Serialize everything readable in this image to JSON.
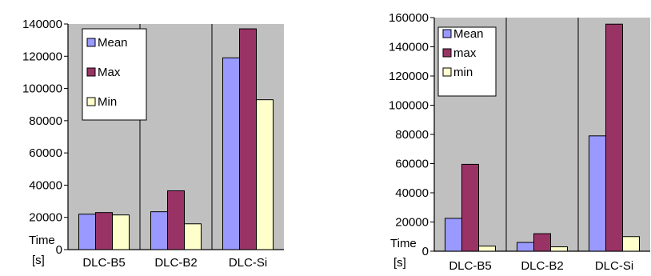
{
  "chart_data": [
    {
      "type": "bar",
      "categories": [
        "DLC-B5",
        "DLC-B2",
        "DLC-Si"
      ],
      "series": [
        {
          "name": "Mean",
          "values": [
            22000,
            23500,
            119000
          ]
        },
        {
          "name": "Max",
          "values": [
            23000,
            36500,
            137000
          ]
        },
        {
          "name": "Min",
          "values": [
            21500,
            16000,
            93000
          ]
        }
      ],
      "ylabel": [
        "Time",
        "[s]"
      ],
      "ylim": [
        0,
        140000
      ],
      "yticks": [
        "0",
        "20000",
        "40000",
        "60000",
        "80000",
        "100000",
        "120000",
        "140000"
      ],
      "grid": false,
      "legend_placement": "top-left"
    },
    {
      "type": "bar",
      "categories": [
        "DLC-B5",
        "DLC-B2",
        "DLC-Si"
      ],
      "series": [
        {
          "name": "Mean",
          "values": [
            22500,
            6000,
            79000
          ]
        },
        {
          "name": "max",
          "values": [
            59500,
            12000,
            155500
          ]
        },
        {
          "name": "min",
          "values": [
            3500,
            3000,
            10000
          ]
        }
      ],
      "ylabel": [
        "Time",
        "[s]"
      ],
      "ylim": [
        0,
        160000
      ],
      "yticks": [
        "0",
        "20000",
        "40000",
        "60000",
        "80000",
        "100000",
        "120000",
        "140000",
        "160000"
      ],
      "grid": false,
      "legend_placement": "top-left"
    }
  ],
  "colors": {
    "series": [
      "#9999ff",
      "#993366",
      "#ffffcc"
    ],
    "plot_bg": "#c0c0c0",
    "axis": "#000000"
  }
}
